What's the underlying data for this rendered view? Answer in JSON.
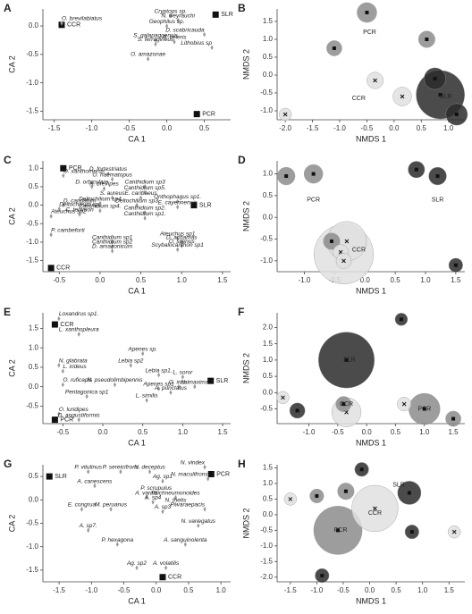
{
  "chart_data": [
    {
      "type": "scatter",
      "panel_label": "A",
      "xlabel": "CA 1",
      "ylabel": "CA 2",
      "xlim": [
        -1.65,
        0.85
      ],
      "xticks": [
        -1.5,
        {
          "value": -1,
          "label": "-1.0"
        },
        -0.5,
        {
          "value": 0,
          "label": "0.0"
        },
        0.5
      ],
      "ylim": [
        -1.65,
        0.3
      ],
      "yticks": [
        {
          "value": 0,
          "label": "0.0"
        },
        -0.5,
        {
          "value": -1,
          "label": "-1.0"
        },
        -1.5
      ],
      "series": [
        {
          "color": "#111111",
          "marker": "square",
          "labels": [
            "SLR",
            "CCR",
            "PCR"
          ],
          "x": [
            0.65,
            -1.4,
            0.4
          ],
          "y": [
            0.2,
            0.02,
            -1.55
          ]
        },
        {
          "color": "#999999",
          "marker": "diamond",
          "labels": [
            "Cryptops sp.",
            "N. weyrauchi",
            "Geophilus sp.",
            "O. brevilabiatus",
            "S. galapagoensis",
            "S. ferrugineus",
            "R. celeris",
            "D. scabricauda",
            "Lithobius sp",
            "O. amazonae"
          ],
          "x": [
            0.05,
            0.15,
            0.0,
            -1.4,
            -0.15,
            -0.15,
            0.1,
            0.5,
            0.6,
            -0.25
          ],
          "y": [
            0.18,
            0.1,
            0.0,
            0.05,
            -0.25,
            -0.32,
            -0.28,
            -0.15,
            -0.38,
            -0.58
          ]
        }
      ]
    },
    {
      "type": "bubble",
      "panel_label": "B",
      "xlabel": "NMDS 1",
      "ylabel": "NMDS 2",
      "xlim": [
        -2.15,
        1.3
      ],
      "xticks": [
        {
          "value": -2,
          "label": "-2.0"
        },
        -1.5,
        {
          "value": -1,
          "label": "-1.0"
        },
        -0.5,
        {
          "value": 0,
          "label": "0.0"
        },
        0.5,
        {
          "value": 1,
          "label": "1.0"
        }
      ],
      "ylim": [
        -1.25,
        1.85
      ],
      "yticks": [
        {
          "value": -1,
          "label": "-1.0"
        },
        -0.5,
        {
          "value": 0,
          "label": "0.0"
        },
        0.5,
        {
          "value": 1,
          "label": "1.0"
        },
        1.5
      ],
      "series": [
        {
          "name": "PCR",
          "color": "#8c8c8c",
          "marker": "square",
          "x": [
            -0.5,
            0.6,
            -1.1
          ],
          "y": [
            1.75,
            1.0,
            0.75
          ],
          "sizes": [
            10,
            7,
            6
          ],
          "label_x": -0.45,
          "label_y": 1.2
        },
        {
          "name": "SLR",
          "color": "#2b2b2b",
          "marker": "square",
          "x": [
            0.75,
            0.85,
            1.15
          ],
          "y": [
            -0.1,
            -0.55,
            -1.1
          ],
          "sizes": [
            12,
            60,
            12
          ],
          "label_x": 0.95,
          "label_y": -0.6
        },
        {
          "name": "CCR",
          "color": "#e0e0e0",
          "marker": "x",
          "x": [
            -0.35,
            0.15,
            -2.0
          ],
          "y": [
            -0.15,
            -0.6,
            -1.1
          ],
          "sizes": [
            7,
            9,
            4
          ],
          "label_x": -0.65,
          "label_y": -0.65
        }
      ]
    },
    {
      "type": "scatter",
      "panel_label": "C",
      "xlabel": "CA 1",
      "ylabel": "CA 2",
      "xlim": [
        -0.7,
        1.6
      ],
      "xticks": [
        -0.5,
        {
          "value": 0,
          "label": "0.0"
        },
        0.5,
        {
          "value": 1,
          "label": "1.0"
        },
        1.5
      ],
      "ylim": [
        -1.8,
        1.2
      ],
      "yticks": [
        {
          "value": 1,
          "label": "1.0"
        },
        0.5,
        {
          "value": 0,
          "label": "0.0"
        },
        -0.5,
        {
          "value": -1,
          "label": "-1.0"
        },
        -1.5
      ],
      "series": [
        {
          "color": "#111111",
          "marker": "square",
          "labels": [
            "PCR",
            "SLR",
            "CCR"
          ],
          "x": [
            -0.45,
            1.15,
            -0.6
          ],
          "y": [
            1.0,
            0.0,
            -1.7
          ]
        },
        {
          "color": "#999999",
          "marker": "diamond",
          "labels": [
            "O. xanthomerus",
            "D. fortestriatus",
            "O. haematopus",
            "D. orbiculare",
            "A. brevipes",
            "S. aureus",
            "Canthidium sp3",
            "Canthidium sp5.",
            "E. caribaeus",
            "D. carinatum",
            "Deltochilium sp1",
            "Deltochilium sp4",
            "Deltochilium sp3",
            "Onthophagus sp1.",
            "E. cayennensis",
            "Canthidium sp4.",
            "Canthidium sp2.",
            "Ateuchus sp2",
            "C. telamon",
            "Canthidium sp1.",
            "P. cambeforti",
            "Canthidium sp1",
            "Canthidium sp2",
            "D. amazonicum",
            "Ateuchus sp1",
            "D. achamas",
            "O. silenus",
            "Scybalocanthon sp1"
          ],
          "x": [
            -0.45,
            0.1,
            0.15,
            -0.1,
            0.05,
            0.15,
            0.55,
            0.55,
            0.5,
            -0.45,
            -0.5,
            0.0,
            0.45,
            0.95,
            0.95,
            0.0,
            0.55,
            -0.6,
            -0.25,
            0.55,
            -0.6,
            0.15,
            0.15,
            0.15,
            0.95,
            1.0,
            1.0,
            0.95
          ],
          "y": [
            0.8,
            0.85,
            0.7,
            0.5,
            0.45,
            0.2,
            0.5,
            0.35,
            0.2,
            0.0,
            -0.1,
            0.05,
            0.0,
            0.1,
            -0.05,
            -0.15,
            -0.2,
            -0.3,
            -0.25,
            -0.35,
            -0.8,
            -1.0,
            -1.12,
            -1.24,
            -0.9,
            -1.0,
            -1.1,
            -1.2
          ]
        }
      ]
    },
    {
      "type": "bubble",
      "panel_label": "D",
      "xlabel": "NMDS 1",
      "ylabel": "NMDS 2",
      "xlim": [
        -1.45,
        1.65
      ],
      "xticks": [
        {
          "value": -1,
          "label": "-1.0"
        },
        -0.5,
        {
          "value": 0,
          "label": "0.0"
        },
        0.5,
        {
          "value": 1,
          "label": "1.0"
        },
        1.5
      ],
      "ylim": [
        -1.25,
        1.3
      ],
      "yticks": [
        {
          "value": -1,
          "label": "-1.0"
        },
        -0.5,
        {
          "value": 0,
          "label": "0.0"
        },
        0.5,
        {
          "value": 1,
          "label": "1.0"
        }
      ],
      "series": [
        {
          "name": "PCR",
          "color": "#8c8c8c",
          "marker": "square",
          "x": [
            -1.3,
            -0.85,
            -0.55
          ],
          "y": [
            0.95,
            1.0,
            -0.55
          ],
          "sizes": [
            8,
            9,
            7
          ],
          "label_x": -0.85,
          "label_y": 0.4
        },
        {
          "name": "SLR",
          "color": "#2b2b2b",
          "marker": "square",
          "x": [
            0.85,
            1.2,
            1.5
          ],
          "y": [
            1.1,
            0.95,
            -1.1
          ],
          "sizes": [
            7,
            8,
            5
          ],
          "label_x": 1.2,
          "label_y": 0.4
        },
        {
          "name": "CCR",
          "color": "#e0e0e0",
          "marker": "x",
          "x": [
            -0.35,
            -0.3,
            -0.4,
            -0.35
          ],
          "y": [
            -0.85,
            -0.55,
            -0.8,
            -1.0
          ],
          "sizes": [
            90,
            40,
            6,
            6
          ],
          "label_x": -0.1,
          "label_y": -0.75
        }
      ]
    },
    {
      "type": "scatter",
      "panel_label": "E",
      "xlabel": "CA 1",
      "ylabel": "CA 2",
      "xlim": [
        -0.75,
        1.6
      ],
      "xticks": [
        -0.5,
        {
          "value": 0,
          "label": "0.0"
        },
        0.5,
        {
          "value": 1,
          "label": "1.0"
        },
        1.5
      ],
      "ylim": [
        -0.95,
        1.9
      ],
      "yticks": [
        1.5,
        {
          "value": 1,
          "label": "1.0"
        },
        0.5,
        {
          "value": 0,
          "label": "0.0"
        },
        -0.5
      ],
      "series": [
        {
          "color": "#111111",
          "marker": "square",
          "labels": [
            "CCR",
            "SLR",
            "PCR"
          ],
          "x": [
            -0.6,
            1.35,
            -0.6
          ],
          "y": [
            1.6,
            0.15,
            -0.85
          ]
        },
        {
          "color": "#999999",
          "marker": "diamond",
          "labels": [
            "Loxandrus sp1.",
            "L. xanthopleura",
            "Apenes sp.",
            "Lebia sp2",
            "N. glabrata",
            "L. irideus",
            "O. ruficapis",
            "N. pseudolimbipennis",
            "Lebia sp1.",
            "L. soror",
            "Apenes sp1",
            "G. incai",
            "N. maxima",
            "A. punctatus",
            "Pentagonica sp1",
            "L. similis",
            "O. luridipes",
            "D. angustiformis"
          ],
          "x": [
            -0.55,
            -0.3,
            0.5,
            0.35,
            -0.55,
            -0.5,
            -0.5,
            0.15,
            0.7,
            1.0,
            0.7,
            0.95,
            1.15,
            0.85,
            -0.2,
            0.55,
            -0.55,
            -0.3
          ],
          "y": [
            1.75,
            1.35,
            0.85,
            0.55,
            0.55,
            0.4,
            0.05,
            0.05,
            0.3,
            0.25,
            -0.05,
            0.0,
            0.0,
            -0.15,
            -0.25,
            -0.35,
            -0.7,
            -0.85
          ]
        }
      ]
    },
    {
      "type": "bubble",
      "panel_label": "F",
      "xlabel": "NMDS 1",
      "ylabel": "NMDS 2",
      "xlim": [
        -1.55,
        1.7
      ],
      "xticks": [
        {
          "value": -1,
          "label": "-1.0"
        },
        -0.5,
        {
          "value": 0,
          "label": "0.0"
        },
        0.5,
        {
          "value": 1,
          "label": "1.0"
        },
        1.5
      ],
      "ylim": [
        -0.95,
        2.45
      ],
      "yticks": [
        -0.5,
        {
          "value": 0,
          "label": "0.0"
        },
        0.5,
        {
          "value": 1,
          "label": "1.0"
        },
        1.5,
        {
          "value": 2,
          "label": "2.0"
        }
      ],
      "series": [
        {
          "name": "SLR",
          "color": "#2b2b2b",
          "marker": "square",
          "x": [
            0.6,
            -0.35,
            -1.2
          ],
          "y": [
            2.25,
            1.0,
            -0.55
          ],
          "sizes": [
            4,
            80,
            6
          ],
          "label_x": -0.3,
          "label_y": 1.0
        },
        {
          "name": "PCR",
          "color": "#8c8c8c",
          "marker": "square",
          "x": [
            -0.4,
            1.0,
            1.5
          ],
          "y": [
            -0.35,
            -0.5,
            -0.8
          ],
          "sizes": [
            6,
            25,
            6
          ],
          "label_x": 1.0,
          "label_y": -0.5
        },
        {
          "name": "CCR",
          "color": "#e0e0e0",
          "marker": "x",
          "x": [
            -1.45,
            -0.35,
            0.65
          ],
          "y": [
            -0.15,
            -0.6,
            -0.35
          ],
          "sizes": [
            4,
            22,
            5
          ],
          "label_x": -0.35,
          "label_y": -0.35
        }
      ]
    },
    {
      "type": "scatter",
      "panel_label": "G",
      "xlabel": "CA 1",
      "ylabel": "CA 2",
      "xlim": [
        -1.75,
        1.15
      ],
      "xticks": [
        -1.5,
        {
          "value": -1,
          "label": "-1.0"
        },
        -0.5,
        {
          "value": 0,
          "label": "0.0"
        },
        0.5,
        {
          "value": 1,
          "label": "1.0"
        }
      ],
      "ylim": [
        -1.75,
        0.75
      ],
      "yticks": [
        0.5,
        {
          "value": 0,
          "label": "0.0"
        },
        -0.5,
        {
          "value": -1,
          "label": "-1.0"
        },
        -1.5
      ],
      "series": [
        {
          "color": "#111111",
          "marker": "square",
          "labels": [
            "SLR",
            "PCR",
            "CCR"
          ],
          "x": [
            -1.65,
            0.85,
            0.1
          ],
          "y": [
            0.5,
            0.55,
            -1.65
          ]
        },
        {
          "color": "#999999",
          "marker": "diamond",
          "labels": [
            "N. vindex",
            "N. maculifrons",
            "P. vitulinus",
            "P. sereicifrons",
            "N. deceptus",
            "Ag. sp1",
            "A. canescens",
            "P. scrupulus",
            "P. ichneumonoides",
            "A. varius",
            "A. sp4",
            "N. thetis",
            "E. congrua",
            "M. peruanus",
            "A. sp3",
            "P. varaepacis",
            "N. variegatus",
            "A. sp7.",
            "A. sanguinolenta",
            "P. hexagona",
            "Ag. sp2",
            "A. volatilis"
          ],
          "x": [
            0.75,
            0.8,
            -1.05,
            -0.55,
            -0.1,
            0.1,
            -0.95,
            0.0,
            0.3,
            -0.15,
            -0.05,
            0.3,
            -1.15,
            -0.7,
            0.1,
            0.75,
            0.65,
            -1.05,
            0.45,
            -0.6,
            -0.3,
            0.15
          ],
          "y": [
            0.7,
            0.45,
            0.6,
            0.6,
            0.6,
            0.4,
            0.3,
            0.15,
            0.05,
            0.05,
            -0.05,
            -0.1,
            -0.2,
            -0.2,
            -0.25,
            -0.2,
            -0.55,
            -0.65,
            -0.95,
            -0.95,
            -1.45,
            -1.45
          ]
        }
      ]
    },
    {
      "type": "bubble",
      "panel_label": "H",
      "xlabel": "NMDS 1",
      "ylabel": "NMDS 2",
      "xlim": [
        -1.75,
        1.8
      ],
      "xticks": [
        -1.5,
        {
          "value": -1,
          "label": "-1.0"
        },
        -0.5,
        {
          "value": 0,
          "label": "0.0"
        },
        0.5,
        {
          "value": 1,
          "label": "1.0"
        },
        1.5
      ],
      "ylim": [
        -2.15,
        1.6
      ],
      "yticks": [
        {
          "value": -2,
          "label": "-2.0"
        },
        -1.5,
        {
          "value": -1,
          "label": "-1.0"
        },
        -0.5,
        {
          "value": 0,
          "label": "0.0"
        },
        0.5,
        {
          "value": 1,
          "label": "1.0"
        },
        1.5
      ],
      "series": [
        {
          "name": "SLR",
          "color": "#2b2b2b",
          "marker": "square",
          "x": [
            -0.15,
            0.75,
            0.8,
            -0.9
          ],
          "y": [
            1.45,
            0.7,
            -0.55,
            -1.95
          ],
          "sizes": [
            5,
            14,
            5,
            5
          ],
          "label_x": 0.55,
          "label_y": 0.95
        },
        {
          "name": "PCR",
          "color": "#8c8c8c",
          "marker": "square",
          "x": [
            -1.0,
            -0.45,
            -0.6
          ],
          "y": [
            0.6,
            0.75,
            -0.5
          ],
          "sizes": [
            5,
            7,
            60
          ],
          "label_x": -0.55,
          "label_y": -0.5
        },
        {
          "name": "CCR",
          "color": "#e0e0e0",
          "marker": "x",
          "x": [
            -1.5,
            0.1,
            1.6
          ],
          "y": [
            0.5,
            0.2,
            -0.55
          ],
          "sizes": [
            4,
            55,
            4
          ],
          "label_x": 0.1,
          "label_y": 0.05
        }
      ]
    }
  ]
}
